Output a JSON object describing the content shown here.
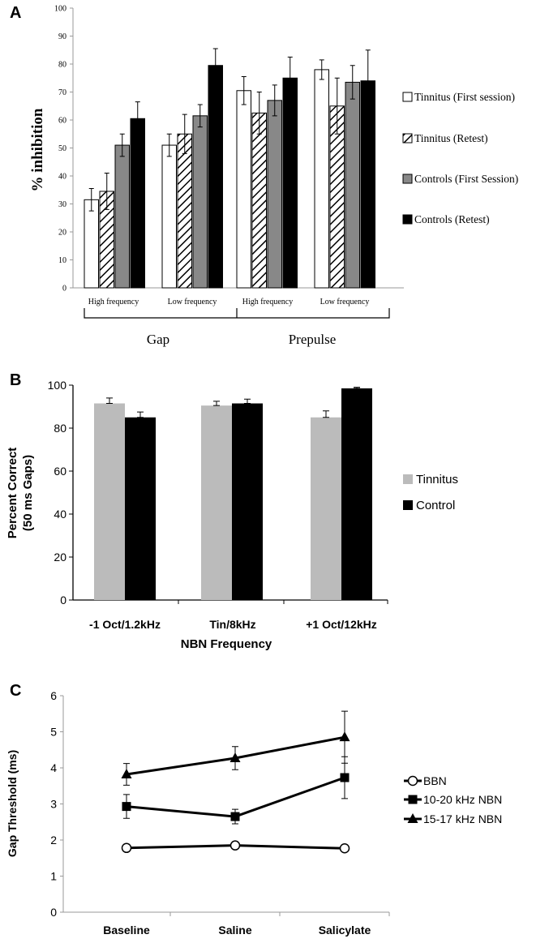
{
  "chart_data": [
    {
      "panel": "A",
      "type": "bar",
      "ylabel": "% inhibition",
      "ylim": [
        0,
        100
      ],
      "yticks": [
        0,
        10,
        20,
        30,
        40,
        50,
        60,
        70,
        80,
        90,
        100
      ],
      "categories": [
        "High frequency",
        "Low frequency",
        "High frequency",
        "Low frequency"
      ],
      "groups": [
        "Gap",
        "Prepulse"
      ],
      "series": [
        {
          "name": "Tinnitus (First session)",
          "fill": "#ffffff",
          "pattern": "open",
          "values": [
            31.5,
            51,
            70.5,
            78
          ],
          "errors": [
            4,
            4,
            5,
            3.5
          ]
        },
        {
          "name": "Tinnitus (Retest)",
          "fill": "#ffffff",
          "pattern": "hatch",
          "values": [
            34.5,
            55,
            62.5,
            65
          ],
          "errors": [
            6.5,
            7,
            7.5,
            10
          ]
        },
        {
          "name": "Controls (First Session)",
          "fill": "#888888",
          "pattern": "solid",
          "values": [
            51,
            61.5,
            67,
            73.5
          ],
          "errors": [
            4,
            4,
            5.5,
            6
          ]
        },
        {
          "name": "Controls (Retest)",
          "fill": "#000000",
          "pattern": "solid",
          "values": [
            60.5,
            79.5,
            75,
            74
          ],
          "errors": [
            6,
            6,
            7.5,
            11
          ]
        }
      ]
    },
    {
      "panel": "B",
      "type": "bar",
      "ylabel_line1": "Percent Correct",
      "ylabel_line2": "(50 ms Gaps)",
      "xlabel": "NBN Frequency",
      "ylim": [
        0,
        100
      ],
      "yticks": [
        0,
        20,
        40,
        60,
        80,
        100
      ],
      "categories": [
        "-1 Oct/1.2kHz",
        "Tin/8kHz",
        "+1 Oct/12kHz"
      ],
      "series": [
        {
          "name": "Tinnitus",
          "fill": "#bbbbbb",
          "values": [
            91.5,
            90.5,
            85
          ],
          "errors": [
            2.5,
            2,
            3
          ]
        },
        {
          "name": "Control",
          "fill": "#000000",
          "values": [
            85,
            91.5,
            98.5
          ],
          "errors": [
            2.5,
            2,
            0.5
          ]
        }
      ]
    },
    {
      "panel": "C",
      "type": "line",
      "ylabel": "Gap Threshold (ms)",
      "ylim": [
        0,
        6
      ],
      "yticks": [
        0,
        1,
        2,
        3,
        4,
        5,
        6
      ],
      "categories": [
        "Baseline",
        "Saline",
        "Salicylate"
      ],
      "series": [
        {
          "name": "BBN",
          "marker": "circle-open",
          "values": [
            1.78,
            1.85,
            1.77
          ],
          "errors": [
            0.05,
            0.05,
            0.05
          ]
        },
        {
          "name": "10-20 kHz NBN",
          "marker": "square",
          "values": [
            2.93,
            2.65,
            3.73
          ],
          "errors": [
            0.33,
            0.2,
            0.58
          ]
        },
        {
          "name": "15-17 kHz NBN",
          "marker": "triangle",
          "values": [
            3.82,
            4.27,
            4.85
          ],
          "errors": [
            0.3,
            0.32,
            0.72
          ]
        }
      ]
    }
  ]
}
